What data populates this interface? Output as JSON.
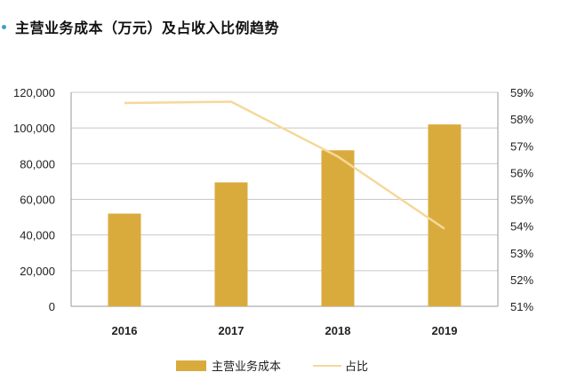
{
  "chart_data": {
    "type": "bar+line",
    "title": "主营业务成本（万元）及占收入比例趋势",
    "categories": [
      "2016",
      "2017",
      "2018",
      "2019"
    ],
    "series": [
      {
        "name": "主营业务成本",
        "type": "bar",
        "axis": "left",
        "values": [
          52000,
          69500,
          87500,
          102000
        ],
        "color": "#d9ab3d"
      },
      {
        "name": "占比",
        "type": "line",
        "axis": "right",
        "values": [
          58.6,
          58.65,
          56.6,
          53.9
        ],
        "color": "#f5d89a"
      }
    ],
    "y_left": {
      "min": 0,
      "max": 120000,
      "ticks": [
        "0",
        "20,000",
        "40,000",
        "60,000",
        "80,000",
        "100,000",
        "120,000"
      ]
    },
    "y_right": {
      "min": 51,
      "max": 59,
      "ticks": [
        "51%",
        "52%",
        "53%",
        "54%",
        "55%",
        "56%",
        "57%",
        "58%",
        "59%"
      ]
    },
    "grid": true,
    "legend": "bottom"
  }
}
